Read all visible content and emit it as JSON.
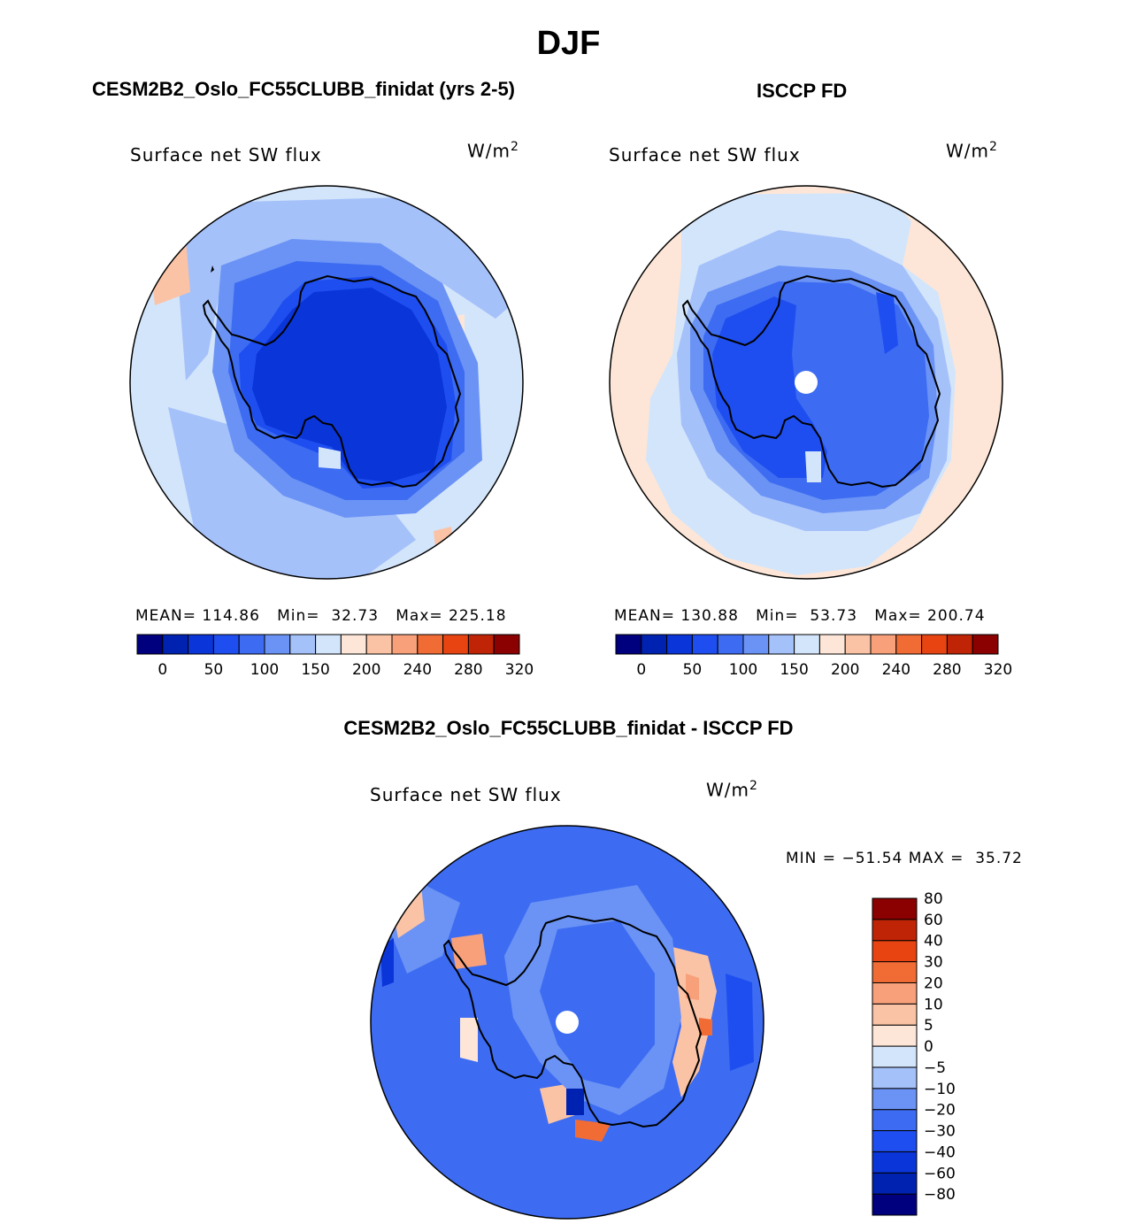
{
  "page": {
    "title": "DJF"
  },
  "panels": [
    {
      "title": "CESM2B2_Oslo_FC55CLUBB_finidat (yrs 2-5)",
      "variable": "Surface net SW flux",
      "units_base": "W/m",
      "units_exp": "2",
      "stats": {
        "mean_label": "MEAN=",
        "mean": "114.86",
        "min_label": "Min=",
        "min": "32.73",
        "max_label": "Max=",
        "max": "225.18"
      }
    },
    {
      "title": "ISCCP FD",
      "variable": "Surface net SW flux",
      "units_base": "W/m",
      "units_exp": "2",
      "stats": {
        "mean_label": "MEAN=",
        "mean": "130.88",
        "min_label": "Min=",
        "min": "53.73",
        "max_label": "Max=",
        "max": "200.74"
      }
    },
    {
      "title": "CESM2B2_Oslo_FC55CLUBB_finidat - ISCCP FD",
      "variable": "Surface net SW flux",
      "units_base": "W/m",
      "units_exp": "2",
      "stats": {
        "min_label": "MIN =",
        "min": "−51.54",
        "max_label": "MAX =",
        "max": "35.72"
      }
    }
  ],
  "chart_data": [
    {
      "type": "heatmap",
      "projection": "south polar stereographic",
      "title": "CESM2B2_Oslo_FC55CLUBB_finidat (yrs 2-5)",
      "variable": "Surface net SW flux",
      "units": "W/m2",
      "mean": 114.86,
      "min": 32.73,
      "max": 225.18,
      "colorbar_orientation": "horizontal",
      "colorbar_levels": [
        0,
        25,
        50,
        75,
        100,
        125,
        150,
        175,
        200,
        220,
        240,
        260,
        280,
        300,
        320
      ],
      "colorbar_tick_labels": [
        "0",
        "50",
        "100",
        "150",
        "200",
        "240",
        "280",
        "320"
      ],
      "colorbar_colors": [
        "#00007f",
        "#0022b0",
        "#0a35d8",
        "#1e4ef0",
        "#3d6cf2",
        "#6b93f5",
        "#a5c1fa",
        "#d3e5fb",
        "#fde6d7",
        "#fbc3a6",
        "#f7a07a",
        "#f16b35",
        "#e84411",
        "#c02406",
        "#8b0000"
      ],
      "field_regions": {
        "antarctica_interior": "0-50",
        "coastal_ring": "50-125",
        "southern_ocean": "125-175",
        "north_edge_patches": "200-220"
      }
    },
    {
      "type": "heatmap",
      "projection": "south polar stereographic",
      "title": "ISCCP FD",
      "variable": "Surface net SW flux",
      "units": "W/m2",
      "mean": 130.88,
      "min": 53.73,
      "max": 200.74,
      "colorbar_orientation": "horizontal",
      "colorbar_levels": [
        0,
        25,
        50,
        75,
        100,
        125,
        150,
        175,
        200,
        220,
        240,
        260,
        280,
        300,
        320
      ],
      "colorbar_tick_labels": [
        "0",
        "50",
        "100",
        "150",
        "200",
        "240",
        "280",
        "320"
      ],
      "colorbar_colors": [
        "#00007f",
        "#0022b0",
        "#0a35d8",
        "#1e4ef0",
        "#3d6cf2",
        "#6b93f5",
        "#a5c1fa",
        "#d3e5fb",
        "#fde6d7",
        "#fbc3a6",
        "#f7a07a",
        "#f16b35",
        "#e84411",
        "#c02406",
        "#8b0000"
      ],
      "field_regions": {
        "antarctica_interior": "50-100",
        "coastal_ring": "75-150",
        "southern_ocean": "150-200",
        "outer_ring": "175-200"
      }
    },
    {
      "type": "heatmap",
      "projection": "south polar stereographic",
      "title": "CESM2B2_Oslo_FC55CLUBB_finidat - ISCCP FD",
      "variable": "Surface net SW flux",
      "units": "W/m2",
      "min": -51.54,
      "max": 35.72,
      "colorbar_orientation": "vertical",
      "colorbar_levels": [
        -80,
        -60,
        -40,
        -30,
        -20,
        -10,
        -5,
        0,
        5,
        10,
        20,
        30,
        40,
        60,
        80
      ],
      "colorbar_tick_labels": [
        "−80",
        "−60",
        "−40",
        "−30",
        "−20",
        "−10",
        "−5",
        "0",
        "5",
        "10",
        "20",
        "30",
        "40",
        "60",
        "80"
      ],
      "colorbar_colors": [
        "#00007f",
        "#0022b0",
        "#0a35d8",
        "#1e4ef0",
        "#3d6cf2",
        "#6b93f5",
        "#a5c1fa",
        "#d3e5fb",
        "#fde6d7",
        "#fbc3a6",
        "#f7a07a",
        "#f16b35",
        "#e84411",
        "#c02406",
        "#8b0000"
      ],
      "field_regions": {
        "antarctica_interior": "-30 to -20",
        "coast_east": "10-30",
        "southern_ocean": "-30 to -10"
      }
    }
  ]
}
